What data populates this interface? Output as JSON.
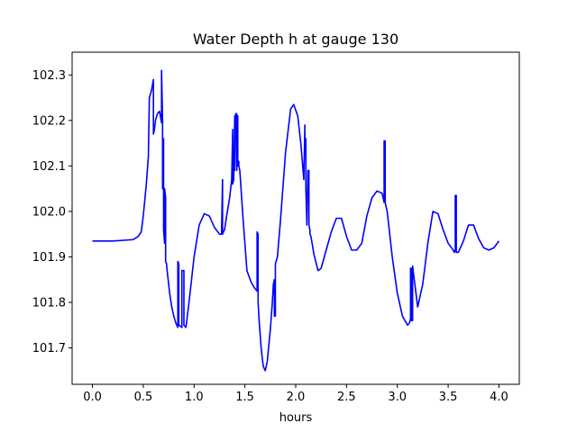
{
  "chart_data": {
    "type": "line",
    "title": "Water Depth h at gauge 130",
    "xlabel": "hours",
    "ylabel": "",
    "xlim": [
      -0.2,
      4.2
    ],
    "ylim": [
      101.62,
      102.35
    ],
    "xticks": [
      0.0,
      0.5,
      1.0,
      1.5,
      2.0,
      2.5,
      3.0,
      3.5,
      4.0
    ],
    "xtick_labels": [
      "0.0",
      "0.5",
      "1.0",
      "1.5",
      "2.0",
      "2.5",
      "3.0",
      "3.5",
      "4.0"
    ],
    "yticks": [
      101.7,
      101.8,
      101.9,
      102.0,
      102.1,
      102.2,
      102.3
    ],
    "ytick_labels": [
      "101.7",
      "101.8",
      "101.9",
      "102.0",
      "102.1",
      "102.2",
      "102.3"
    ],
    "grid": false,
    "series": [
      {
        "color": "#0000ff",
        "x": [
          0.0,
          0.2,
          0.4,
          0.45,
          0.48,
          0.5,
          0.53,
          0.55,
          0.56,
          0.56,
          0.58,
          0.6,
          0.6,
          0.61,
          0.62,
          0.64,
          0.66,
          0.68,
          0.68,
          0.69,
          0.69,
          0.7,
          0.7,
          0.71,
          0.71,
          0.72,
          0.72,
          0.73,
          0.73,
          0.74,
          0.76,
          0.78,
          0.8,
          0.82,
          0.84,
          0.84,
          0.85,
          0.85,
          0.88,
          0.88,
          0.9,
          0.9,
          0.92,
          0.95,
          1.0,
          1.05,
          1.1,
          1.15,
          1.2,
          1.25,
          1.27,
          1.28,
          1.28,
          1.29,
          1.3,
          1.32,
          1.35,
          1.37,
          1.38,
          1.38,
          1.39,
          1.4,
          1.4,
          1.41,
          1.42,
          1.42,
          1.43,
          1.43,
          1.44,
          1.44,
          1.45,
          1.48,
          1.52,
          1.56,
          1.6,
          1.62,
          1.62,
          1.63,
          1.63,
          1.64,
          1.66,
          1.68,
          1.7,
          1.72,
          1.75,
          1.77,
          1.78,
          1.79,
          1.79,
          1.8,
          1.8,
          1.82,
          1.85,
          1.9,
          1.95,
          1.98,
          2.02,
          2.05,
          2.08,
          2.09,
          2.09,
          2.1,
          2.1,
          2.11,
          2.12,
          2.13,
          2.13,
          2.14,
          2.14,
          2.15,
          2.18,
          2.22,
          2.25,
          2.3,
          2.35,
          2.4,
          2.45,
          2.5,
          2.55,
          2.6,
          2.65,
          2.7,
          2.75,
          2.8,
          2.85,
          2.87,
          2.87,
          2.88,
          2.88,
          2.9,
          2.95,
          3.0,
          3.05,
          3.1,
          3.12,
          3.13,
          3.13,
          3.14,
          3.14,
          3.15,
          3.15,
          3.2,
          3.25,
          3.3,
          3.35,
          3.4,
          3.45,
          3.5,
          3.55,
          3.56,
          3.57,
          3.57,
          3.58,
          3.58,
          3.6,
          3.65,
          3.7,
          3.75,
          3.8,
          3.85,
          3.9,
          3.95,
          4.0
        ],
        "y": [
          101.935,
          101.935,
          101.938,
          101.945,
          101.955,
          101.99,
          102.06,
          102.12,
          102.25,
          102.25,
          102.265,
          102.29,
          102.17,
          102.18,
          102.2,
          102.215,
          102.22,
          102.195,
          102.31,
          102.2,
          102.05,
          102.16,
          101.96,
          101.93,
          102.05,
          102.03,
          101.89,
          101.885,
          101.88,
          101.86,
          101.82,
          101.79,
          101.77,
          101.755,
          101.745,
          101.89,
          101.885,
          101.75,
          101.745,
          101.87,
          101.87,
          101.75,
          101.745,
          101.8,
          101.9,
          101.97,
          101.995,
          101.99,
          101.965,
          101.95,
          101.95,
          102.07,
          101.95,
          101.955,
          101.96,
          101.99,
          102.03,
          102.07,
          102.18,
          102.06,
          102.07,
          102.21,
          102.09,
          102.215,
          102.215,
          102.09,
          102.21,
          102.1,
          102.11,
          102.1,
          102.09,
          101.99,
          101.87,
          101.845,
          101.83,
          101.825,
          101.955,
          101.95,
          101.8,
          101.76,
          101.7,
          101.66,
          101.65,
          101.67,
          101.74,
          101.8,
          101.84,
          101.85,
          101.77,
          101.77,
          101.885,
          101.9,
          101.98,
          102.13,
          102.225,
          102.235,
          102.21,
          102.15,
          102.07,
          102.19,
          102.15,
          102.16,
          102.05,
          101.97,
          102.09,
          102.09,
          101.97,
          101.96,
          101.95,
          101.945,
          101.905,
          101.87,
          101.875,
          101.915,
          101.955,
          101.985,
          101.985,
          101.945,
          101.915,
          101.915,
          101.93,
          101.99,
          102.03,
          102.045,
          102.04,
          102.02,
          102.155,
          102.155,
          102.02,
          102.0,
          101.9,
          101.82,
          101.77,
          101.75,
          101.755,
          101.765,
          101.875,
          101.875,
          101.76,
          101.76,
          101.88,
          101.79,
          101.84,
          101.93,
          102.0,
          101.995,
          101.96,
          101.93,
          101.915,
          101.91,
          101.915,
          102.035,
          102.035,
          101.91,
          101.91,
          101.935,
          101.97,
          101.97,
          101.94,
          101.92,
          101.915,
          101.92,
          101.935
        ]
      }
    ]
  }
}
